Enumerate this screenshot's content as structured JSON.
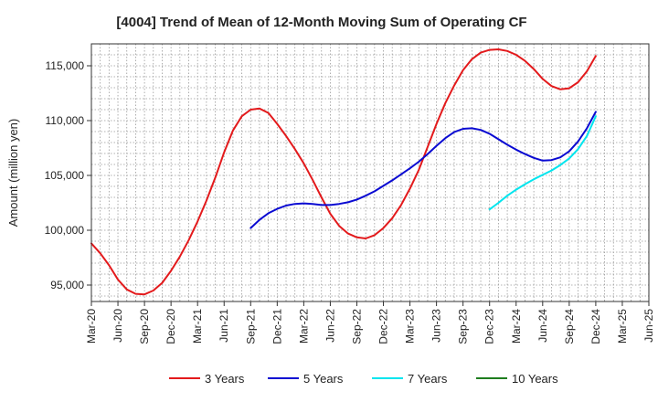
{
  "chart_data": {
    "type": "line",
    "title": "[4004]  Trend of Mean of 12-Month Moving Sum of Operating CF",
    "xlabel": "",
    "ylabel": "Amount (million yen)",
    "ylim": [
      93500,
      117000
    ],
    "y_ticks": [
      95000,
      100000,
      105000,
      110000,
      115000
    ],
    "y_tick_labels": [
      "95,000",
      "100,000",
      "105,000",
      "110,000",
      "115,000"
    ],
    "x_tick_labels": [
      "Mar-20",
      "Jun-20",
      "Sep-20",
      "Dec-20",
      "Mar-21",
      "Jun-21",
      "Sep-21",
      "Dec-21",
      "Mar-22",
      "Jun-22",
      "Sep-22",
      "Dec-22",
      "Mar-23",
      "Jun-23",
      "Sep-23",
      "Dec-23",
      "Mar-24",
      "Jun-24",
      "Sep-24",
      "Dec-24",
      "Mar-25",
      "Jun-25"
    ],
    "x_note": "x values are month indices starting at Mar-20 = 0",
    "x_range": [
      0,
      63
    ],
    "grid": true,
    "legend_position": "bottom",
    "series": [
      {
        "name": "3 Years",
        "color": "#e31a1c",
        "x": [
          0,
          1,
          2,
          3,
          4,
          5,
          6,
          7,
          8,
          9,
          10,
          11,
          12,
          13,
          14,
          15,
          16,
          17,
          18,
          19,
          20,
          21,
          22,
          23,
          24,
          25,
          26,
          27,
          28,
          29,
          30,
          31,
          32,
          33,
          34,
          35,
          36,
          37,
          38,
          39,
          40,
          41,
          42,
          43,
          44,
          45,
          46,
          47,
          48,
          49,
          50,
          51,
          52,
          53,
          54,
          55,
          56,
          57
        ],
        "values": [
          98800,
          97900,
          96800,
          95500,
          94600,
          94200,
          94150,
          94500,
          95200,
          96300,
          97600,
          99100,
          100800,
          102700,
          104800,
          107100,
          109100,
          110400,
          111000,
          111100,
          110700,
          109700,
          108600,
          107400,
          106100,
          104600,
          103000,
          101500,
          100400,
          99700,
          99350,
          99250,
          99550,
          100200,
          101100,
          102300,
          103800,
          105500,
          107600,
          109700,
          111600,
          113200,
          114600,
          115600,
          116200,
          116450,
          116500,
          116350,
          116000,
          115450,
          114700,
          113800,
          113150,
          112850,
          112950,
          113500,
          114500,
          115900
        ]
      },
      {
        "name": "5 Years",
        "color": "#0a0ad2",
        "x": [
          18,
          19,
          20,
          21,
          22,
          23,
          24,
          25,
          26,
          27,
          28,
          29,
          30,
          31,
          32,
          33,
          34,
          35,
          36,
          37,
          38,
          39,
          40,
          41,
          42,
          43,
          44,
          45,
          46,
          47,
          48,
          49,
          50,
          51,
          52,
          53,
          54,
          55,
          56,
          57
        ],
        "values": [
          100200,
          100950,
          101550,
          101950,
          102250,
          102400,
          102450,
          102400,
          102300,
          102300,
          102400,
          102550,
          102800,
          103150,
          103550,
          104050,
          104550,
          105100,
          105650,
          106250,
          106950,
          107700,
          108400,
          108950,
          109250,
          109300,
          109150,
          108800,
          108300,
          107800,
          107350,
          106950,
          106600,
          106350,
          106400,
          106650,
          107200,
          108100,
          109300,
          110800
        ]
      },
      {
        "name": "7 Years",
        "color": "#00e5ee",
        "x": [
          45,
          46,
          47,
          48,
          49,
          50,
          51,
          52,
          53,
          54,
          55,
          56,
          57
        ],
        "values": [
          101900,
          102500,
          103150,
          103700,
          104200,
          104650,
          105050,
          105450,
          105950,
          106550,
          107400,
          108600,
          110400
        ]
      },
      {
        "name": "10 Years",
        "color": "#1e7d1e",
        "x": [],
        "values": []
      }
    ]
  }
}
